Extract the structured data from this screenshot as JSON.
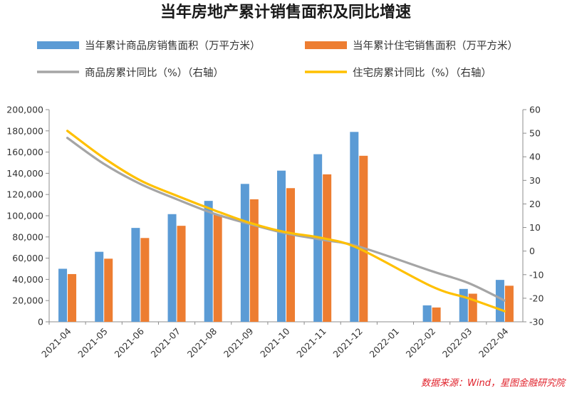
{
  "colors": {
    "commercial_bar": "#5b9bd5",
    "residential_bar": "#ed7d31",
    "commercial_line": "#a5a5a5",
    "residential_line": "#ffc000",
    "axis": "#8c8c8c",
    "source": "#e0212b"
  },
  "chart_data": {
    "type": "bar",
    "title": "当年房地产累计销售面积及同比增速",
    "categories": [
      "2021-04",
      "2021-05",
      "2021-06",
      "2021-07",
      "2021-08",
      "2021-09",
      "2021-10",
      "2021-11",
      "2021-12",
      "2022-01",
      "2022-02",
      "2022-03",
      "2022-04"
    ],
    "series": [
      {
        "name": "当年累计商品房销售面积（万平方米）",
        "kind": "bar",
        "axis": "left",
        "values": [
          50000,
          66000,
          88500,
          101500,
          114000,
          130000,
          142500,
          158000,
          179000,
          null,
          15500,
          31000,
          39500
        ]
      },
      {
        "name": "当年累计住宅销售面积（万平方米）",
        "kind": "bar",
        "axis": "left",
        "values": [
          45000,
          59500,
          79000,
          90500,
          101000,
          115500,
          126000,
          139000,
          156500,
          null,
          13500,
          26500,
          34000
        ]
      },
      {
        "name": "商品房累计同比（%）（右轴）",
        "kind": "line",
        "axis": "right",
        "values": [
          48,
          37,
          28.5,
          22,
          16,
          11.5,
          7.5,
          4.8,
          1.9,
          null,
          -8.5,
          -13.5,
          -21
        ]
      },
      {
        "name": "住宅房累计同比（%）（右轴）",
        "kind": "line",
        "axis": "right",
        "values": [
          51,
          39.5,
          30,
          23.5,
          17.5,
          12,
          8,
          5.5,
          1.1,
          null,
          -15,
          -20,
          -25.5
        ]
      }
    ],
    "y_left": {
      "min": 0,
      "max": 200000,
      "ticks": [
        "0",
        "20,000",
        "40,000",
        "60,000",
        "80,000",
        "100,000",
        "120,000",
        "140,000",
        "160,000",
        "180,000",
        "200,000"
      ]
    },
    "y_right": {
      "min": -30,
      "max": 60,
      "ticks": [
        "-30",
        "-20",
        "-10",
        "0",
        "10",
        "20",
        "30",
        "40",
        "50",
        "60"
      ]
    },
    "legend_position": "top",
    "grid": false
  },
  "source": "数据来源：Wind，星图金融研究院"
}
